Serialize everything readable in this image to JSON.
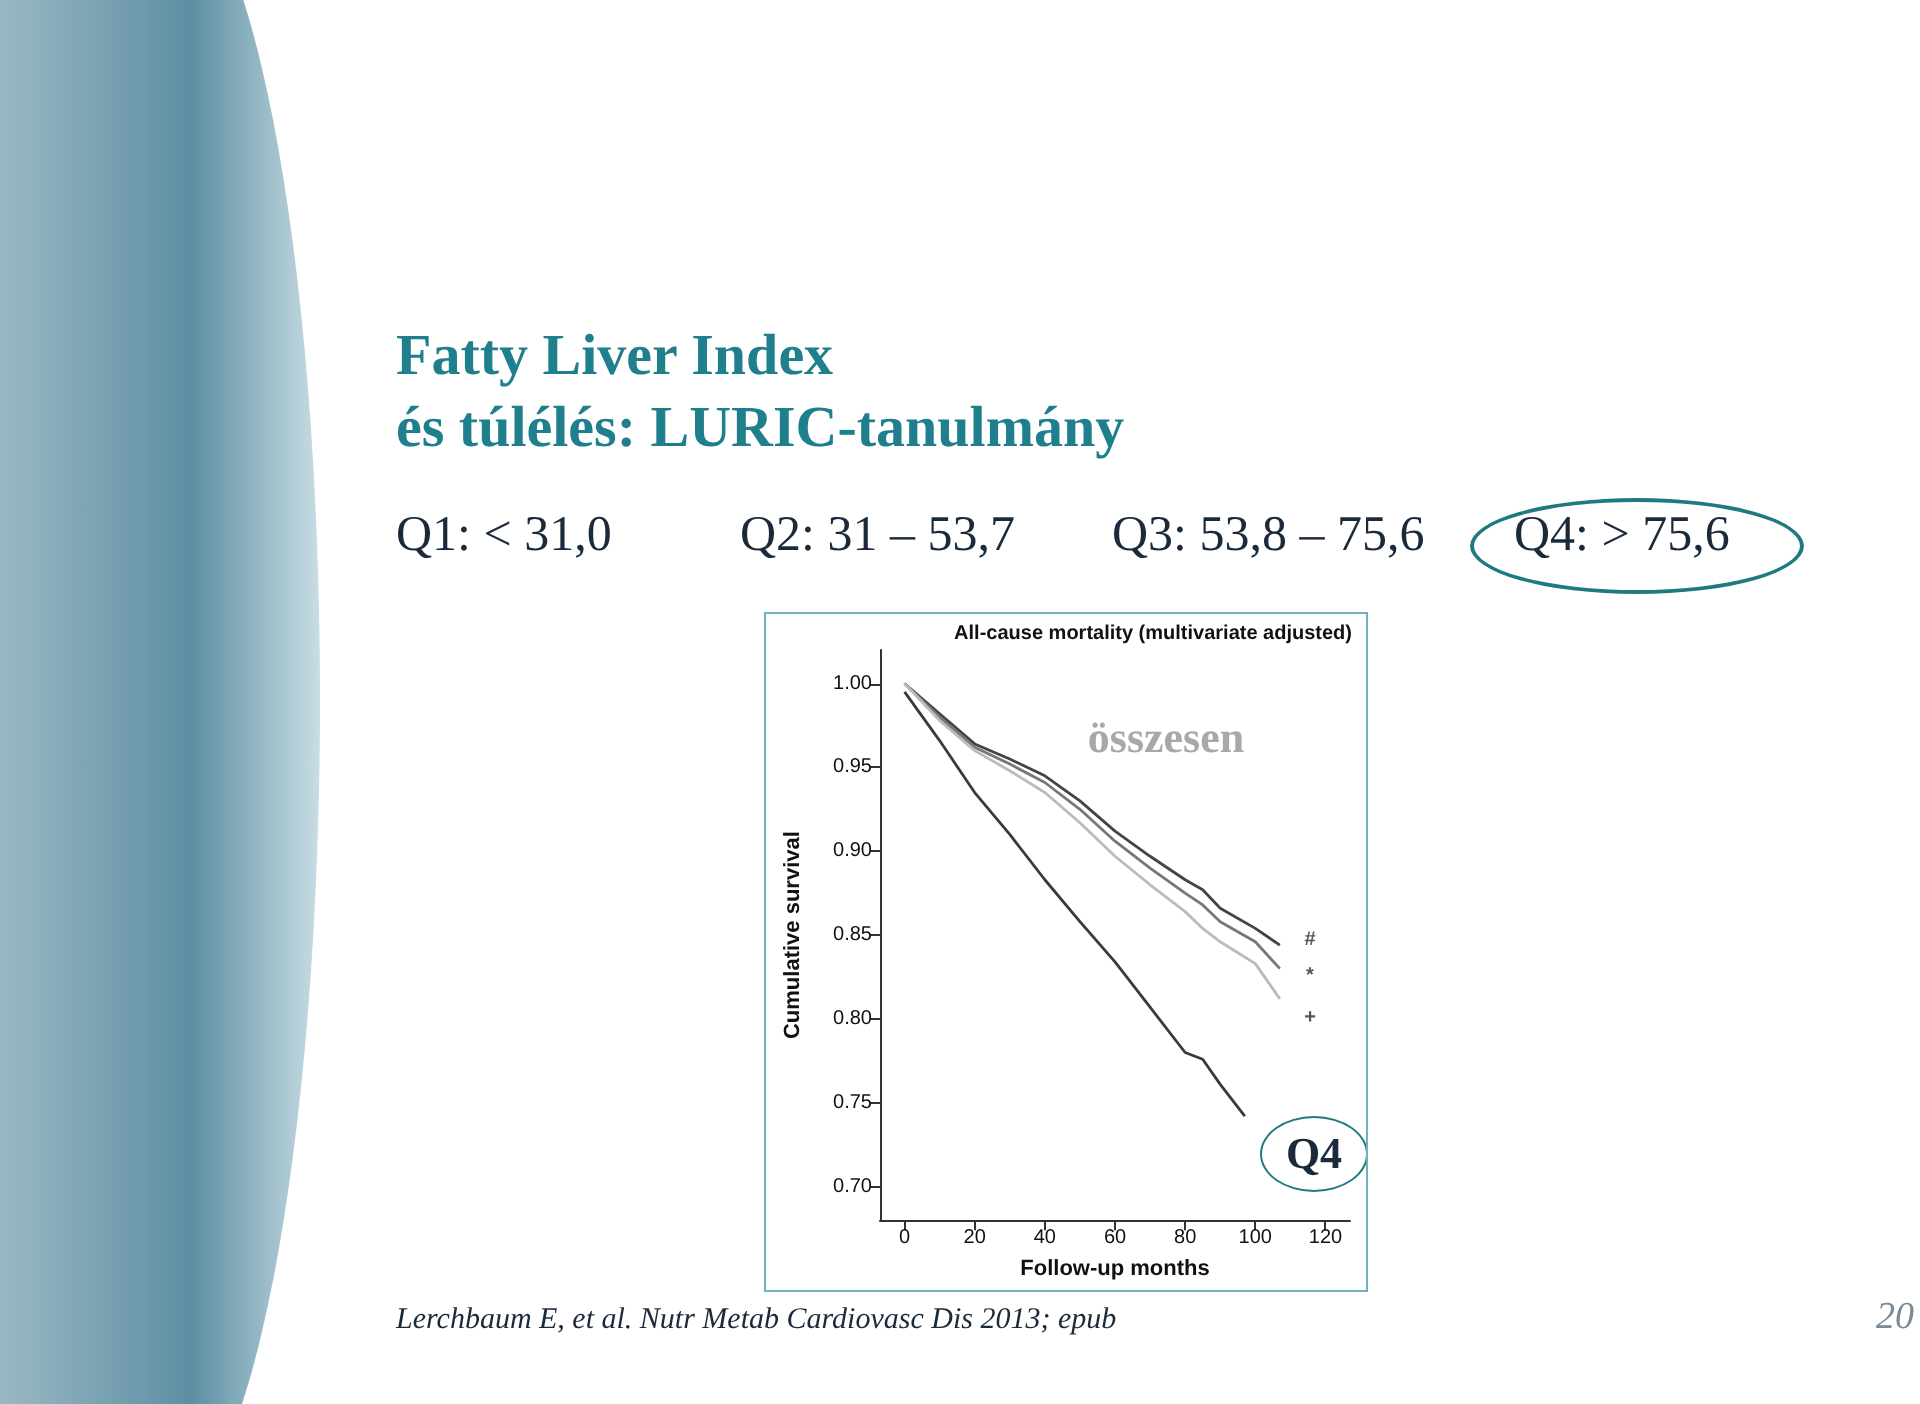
{
  "chart_data": {
    "type": "line",
    "title": "Fatty Liver Index\nés túlélés: LURIC-tanulmány",
    "subtitle": "All-cause mortality (multivariate adjusted)",
    "xlabel": "Follow-up months",
    "ylabel": "Cumulative survival",
    "series": [
      {
        "color": "#444444",
        "x": [
          0,
          10,
          20,
          30,
          40,
          50,
          60,
          70,
          80,
          85,
          90,
          100,
          107
        ],
        "values": [
          1.0,
          0.982,
          0.964,
          0.955,
          0.945,
          0.93,
          0.912,
          0.897,
          0.883,
          0.877,
          0.866,
          0.854,
          0.844
        ]
      },
      {
        "color": "#777777",
        "x": [
          0,
          10,
          20,
          30,
          40,
          50,
          60,
          70,
          80,
          85,
          90,
          100,
          107
        ],
        "values": [
          1.0,
          0.98,
          0.962,
          0.952,
          0.941,
          0.925,
          0.906,
          0.89,
          0.875,
          0.868,
          0.858,
          0.846,
          0.83
        ]
      },
      {
        "color": "#bbbbbb",
        "x": [
          0,
          10,
          20,
          30,
          40,
          50,
          60,
          70,
          80,
          85,
          90,
          100,
          107
        ],
        "values": [
          1.0,
          0.978,
          0.96,
          0.948,
          0.935,
          0.917,
          0.897,
          0.88,
          0.864,
          0.854,
          0.846,
          0.833,
          0.812
        ]
      },
      {
        "color": "#3a3a3a",
        "x": [
          0,
          10,
          20,
          30,
          40,
          50,
          60,
          70,
          80,
          85,
          90,
          97
        ],
        "values": [
          0.995,
          0.966,
          0.935,
          0.91,
          0.883,
          0.858,
          0.834,
          0.807,
          0.78,
          0.776,
          0.761,
          0.742
        ]
      }
    ],
    "xlim": [
      -7,
      127
    ],
    "xticks": [
      0,
      20,
      40,
      60,
      80,
      100,
      120
    ],
    "ylim": [
      0.68,
      1.02
    ],
    "yticks": [
      {
        "value": 0.7,
        "label": "0.70"
      },
      {
        "value": 0.75,
        "label": "0.75"
      },
      {
        "value": 0.8,
        "label": "0.80"
      },
      {
        "value": 0.85,
        "label": "0.85"
      },
      {
        "value": 0.9,
        "label": "0.90"
      },
      {
        "value": 0.95,
        "label": "0.95"
      },
      {
        "value": 1.0,
        "label": "1.00"
      }
    ],
    "grid": false,
    "marker": "none",
    "line_style": "solid",
    "annotations": [
      "Q1: < 31,0",
      "Q2: 31 – 53,7",
      "Q3: 53,8 – 75,6",
      "Q4: > 75,6",
      "összesen",
      "Q4",
      "#",
      "*",
      "+",
      "Lerchbaum E, et al. Nutr Metab Cardiovasc Dis 2013; epub",
      "20"
    ]
  }
}
